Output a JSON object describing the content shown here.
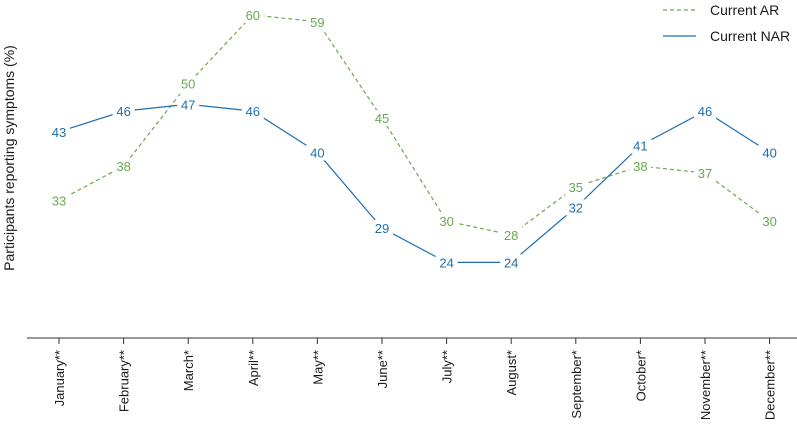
{
  "chart_data": {
    "type": "line",
    "title": "",
    "xlabel": "",
    "ylabel": "Participants reporting symptoms (%)",
    "categories": [
      "January**",
      "February**",
      "March*",
      "April**",
      "May**",
      "June**",
      "July**",
      "August*",
      "September*",
      "October*",
      "November**",
      "December**"
    ],
    "series": [
      {
        "name": "Current AR",
        "color": "#6aa84f",
        "style": "dashed",
        "values": [
          33,
          38,
          50,
          60,
          59,
          45,
          30,
          28,
          35,
          38,
          37,
          30
        ]
      },
      {
        "name": "Current NAR",
        "color": "#1f6fae",
        "style": "solid",
        "values": [
          43,
          46,
          47,
          46,
          40,
          29,
          24,
          24,
          32,
          41,
          46,
          40
        ]
      }
    ],
    "ylim": [
      13,
      61
    ],
    "grid": false,
    "legend_position": "top-right",
    "data_labels": true
  }
}
